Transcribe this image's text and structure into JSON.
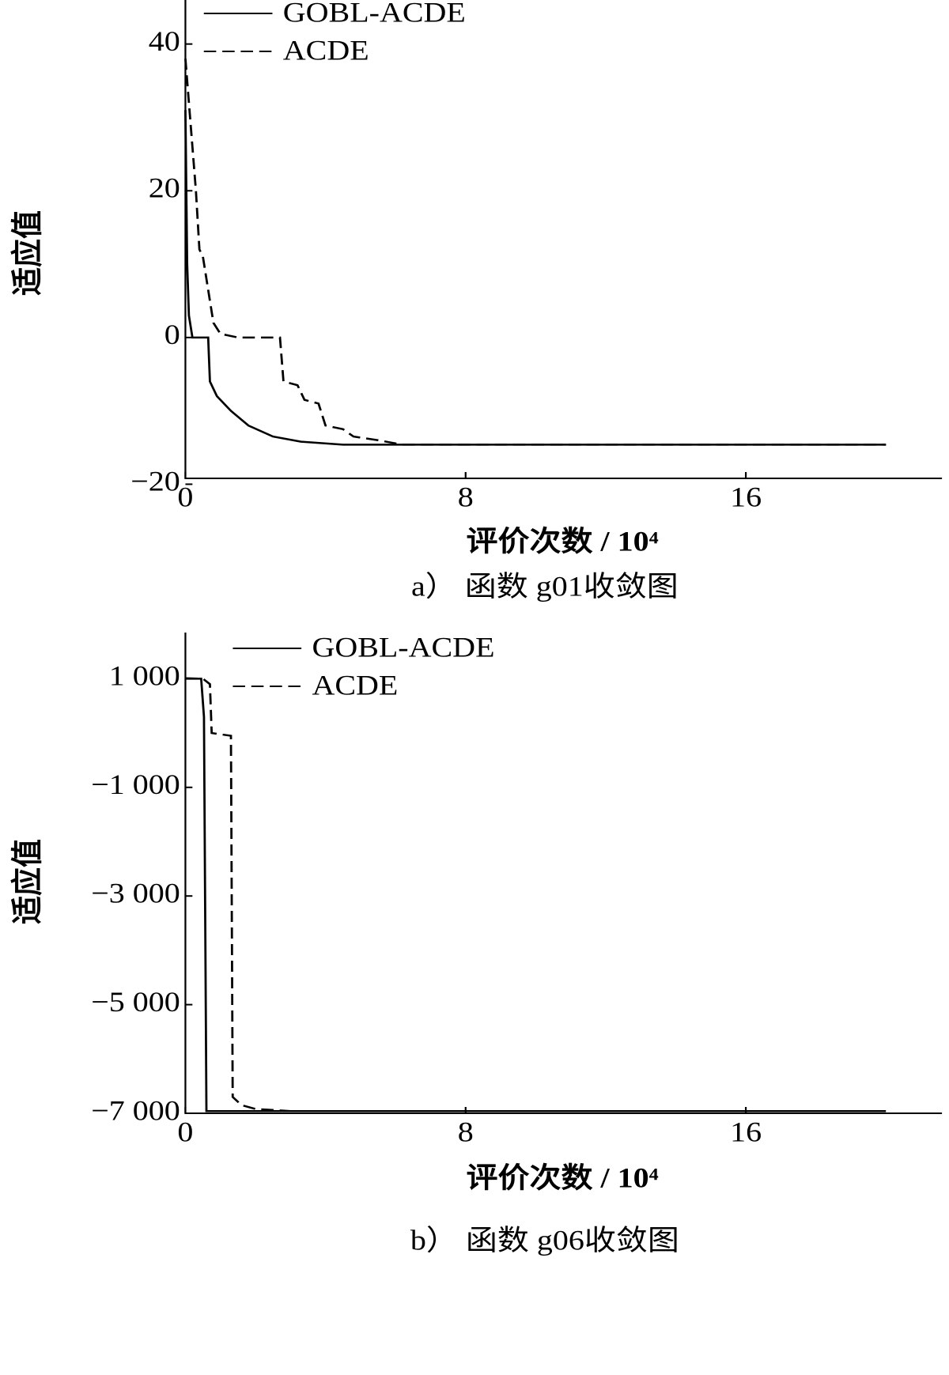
{
  "chart_data": [
    {
      "type": "line",
      "title": null,
      "caption": "a）  函数 g01收敛图",
      "xlabel": "评价次数 / 10⁴",
      "ylabel": "适应值",
      "xlim": [
        0,
        21.6
      ],
      "xticks": [
        0,
        8,
        16
      ],
      "ylim": [
        -19.2,
        46
      ],
      "yticks": [
        {
          "value": -20,
          "label": "−20"
        },
        0,
        20,
        40
      ],
      "legend": "upper left",
      "series": [
        {
          "name": "GOBL-ACDE",
          "color": "#000000",
          "dash": "solid",
          "x": [
            0,
            0.05,
            0.1,
            0.2,
            0.65,
            0.7,
            0.9,
            1.3,
            1.8,
            2.5,
            3.3,
            4.5,
            20
          ],
          "values": [
            31,
            10,
            3,
            0,
            0,
            -6,
            -8,
            -10,
            -12,
            -13.5,
            -14.2,
            -14.6,
            -14.6
          ]
        },
        {
          "name": "ACDE",
          "color": "#000000",
          "dash": "dashed",
          "x": [
            0,
            0.3,
            0.4,
            0.5,
            0.8,
            1.0,
            1.5,
            2.7,
            2.8,
            3.2,
            3.4,
            3.8,
            4.0,
            4.5,
            4.8,
            5.5,
            6.2,
            20
          ],
          "values": [
            38,
            20,
            12,
            11,
            2,
            0.5,
            0,
            0,
            -6,
            -6.5,
            -8.5,
            -9,
            -12,
            -12.5,
            -13.5,
            -14,
            -14.6,
            -14.6
          ]
        }
      ]
    },
    {
      "type": "line",
      "title": null,
      "caption": "b）  函数 g06收敛图",
      "xlabel": "评价次数 / 10⁴",
      "ylabel": "适应值",
      "xlim": [
        0,
        21.6
      ],
      "xticks": [
        0,
        8,
        16
      ],
      "ylim": [
        -7000,
        1850
      ],
      "yticks": [
        {
          "value": -7000,
          "label": "−7 000"
        },
        {
          "value": -5000,
          "label": "−5 000"
        },
        {
          "value": -3000,
          "label": "−3 000"
        },
        {
          "value": -1000,
          "label": "−1 000"
        },
        {
          "value": 1000,
          "label": "1 000"
        }
      ],
      "legend": "upper left",
      "series": [
        {
          "name": "GOBL-ACDE",
          "color": "#000000",
          "dash": "solid",
          "x": [
            0,
            0.45,
            0.53,
            0.6,
            20
          ],
          "values": [
            1000,
            1000,
            300,
            -6960,
            -6960
          ]
        },
        {
          "name": "ACDE",
          "color": "#000000",
          "dash": "dashed",
          "x": [
            0,
            0.5,
            0.7,
            0.75,
            1.3,
            1.35,
            1.6,
            2.0,
            3,
            20
          ],
          "values": [
            1010,
            1000,
            900,
            0,
            -50,
            -6700,
            -6850,
            -6920,
            -6960,
            -6960
          ]
        }
      ]
    }
  ]
}
